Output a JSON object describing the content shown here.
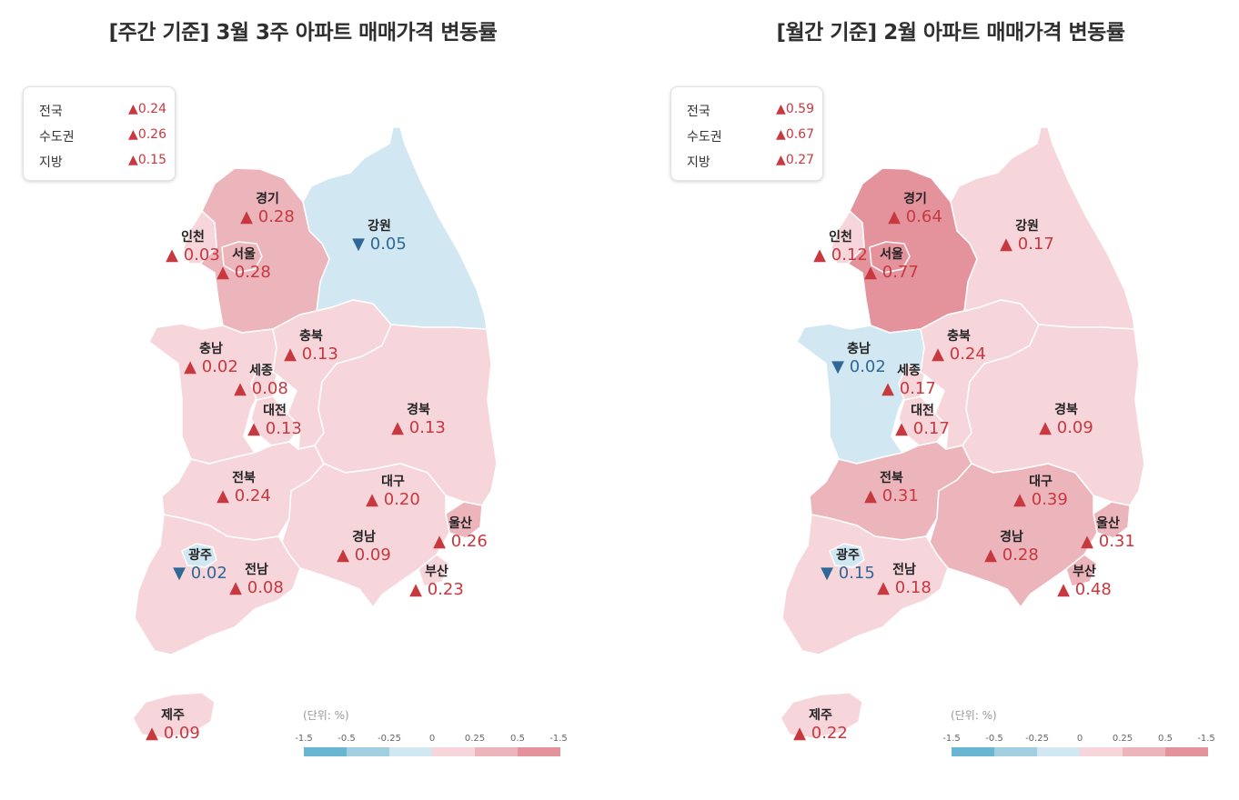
{
  "colors": {
    "up_text": "#c8383f",
    "down_text": "#2f6796",
    "fill_levels": {
      "-1.5": "#6ab5cf",
      "-0.5": "#a2cfdf",
      "-0.25": "#d1e8f2",
      "0": "#f6d6da",
      "0.25": "#ecb4bb",
      "0.5": "#e4939c"
    }
  },
  "legend": {
    "unit": "(단위:  %)",
    "ticks": [
      "-1.5",
      "-0.5",
      "-0.25",
      "0",
      "0.25",
      "0.5",
      "-1.5"
    ],
    "segment_colors": [
      "#6ab5cf",
      "#a2cfdf",
      "#d1e8f2",
      "#f6d6da",
      "#ecb4bb",
      "#e4939c"
    ]
  },
  "panels": [
    {
      "title": "[주간 기준] 3월 3주 아파트 매매가격 변동률",
      "summary": [
        {
          "name": "전국",
          "value": "▲0.24"
        },
        {
          "name": "수도권",
          "value": "▲0.26"
        },
        {
          "name": "지방",
          "value": "▲0.15"
        }
      ],
      "regions": {
        "gyeonggi": {
          "name": "경기",
          "dir": "up",
          "value": "▲ 0.28"
        },
        "gangwon": {
          "name": "강원",
          "dir": "down",
          "value": "▼ 0.05"
        },
        "incheon": {
          "name": "인천",
          "dir": "up",
          "value": "▲ 0.03"
        },
        "seoul": {
          "name": "서울",
          "dir": "up",
          "value": "▲ 0.28"
        },
        "chungbuk": {
          "name": "충북",
          "dir": "up",
          "value": "▲ 0.13"
        },
        "chungnam": {
          "name": "충남",
          "dir": "up",
          "value": "▲ 0.02"
        },
        "sejong": {
          "name": "세종",
          "dir": "up",
          "value": "▲ 0.08"
        },
        "daejeon": {
          "name": "대전",
          "dir": "up",
          "value": "▲ 0.13"
        },
        "gyeongbuk": {
          "name": "경북",
          "dir": "up",
          "value": "▲ 0.13"
        },
        "jeonbuk": {
          "name": "전북",
          "dir": "up",
          "value": "▲ 0.24"
        },
        "daegu": {
          "name": "대구",
          "dir": "up",
          "value": "▲ 0.20"
        },
        "ulsan": {
          "name": "울산",
          "dir": "up",
          "value": "▲ 0.26"
        },
        "gyeongnam": {
          "name": "경남",
          "dir": "up",
          "value": "▲ 0.09"
        },
        "gwangju": {
          "name": "광주",
          "dir": "down",
          "value": "▼ 0.02"
        },
        "jeonnam": {
          "name": "전남",
          "dir": "up",
          "value": "▲ 0.08"
        },
        "busan": {
          "name": "부산",
          "dir": "up",
          "value": "▲ 0.23"
        },
        "jeju": {
          "name": "제주",
          "dir": "up",
          "value": "▲ 0.09"
        }
      }
    },
    {
      "title": "[월간 기준] 2월 아파트 매매가격 변동률",
      "summary": [
        {
          "name": "전국",
          "value": "▲0.59"
        },
        {
          "name": "수도권",
          "value": "▲0.67"
        },
        {
          "name": "지방",
          "value": "▲0.27"
        }
      ],
      "regions": {
        "gyeonggi": {
          "name": "경기",
          "dir": "up",
          "value": "▲ 0.64"
        },
        "gangwon": {
          "name": "강원",
          "dir": "up",
          "value": "▲ 0.17"
        },
        "incheon": {
          "name": "인천",
          "dir": "up",
          "value": "▲ 0.12"
        },
        "seoul": {
          "name": "서울",
          "dir": "up",
          "value": "▲ 0.77"
        },
        "chungbuk": {
          "name": "충북",
          "dir": "up",
          "value": "▲ 0.24"
        },
        "chungnam": {
          "name": "충남",
          "dir": "down",
          "value": "▼ 0.02"
        },
        "sejong": {
          "name": "세종",
          "dir": "up",
          "value": "▲ 0.17"
        },
        "daejeon": {
          "name": "대전",
          "dir": "up",
          "value": "▲ 0.17"
        },
        "gyeongbuk": {
          "name": "경북",
          "dir": "up",
          "value": "▲ 0.09"
        },
        "jeonbuk": {
          "name": "전북",
          "dir": "up",
          "value": "▲ 0.31"
        },
        "daegu": {
          "name": "대구",
          "dir": "up",
          "value": "▲ 0.39"
        },
        "ulsan": {
          "name": "울산",
          "dir": "up",
          "value": "▲ 0.31"
        },
        "gyeongnam": {
          "name": "경남",
          "dir": "up",
          "value": "▲ 0.28"
        },
        "gwangju": {
          "name": "광주",
          "dir": "down",
          "value": "▼ 0.15"
        },
        "jeonnam": {
          "name": "전남",
          "dir": "up",
          "value": "▲ 0.18"
        },
        "busan": {
          "name": "부산",
          "dir": "up",
          "value": "▲ 0.48"
        },
        "jeju": {
          "name": "제주",
          "dir": "up",
          "value": "▲ 0.22"
        }
      }
    }
  ]
}
